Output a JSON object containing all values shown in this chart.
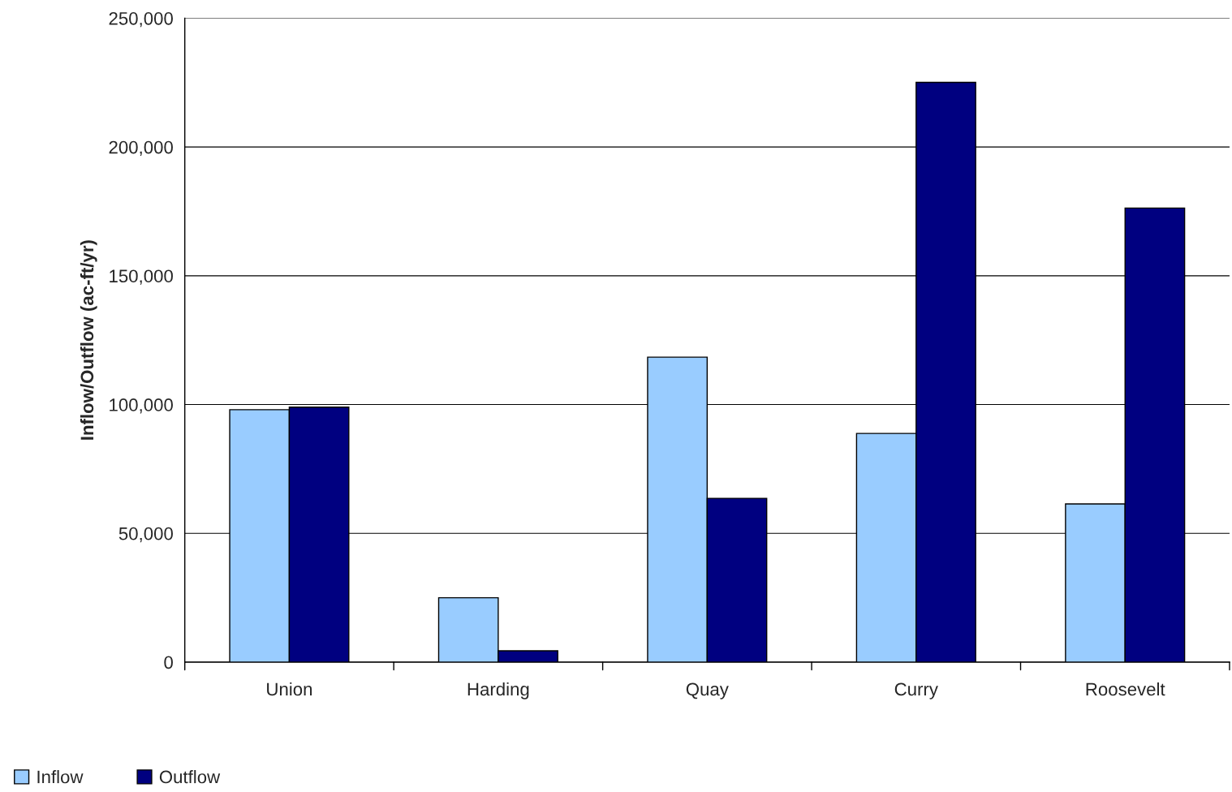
{
  "chart_data": {
    "type": "bar",
    "ylabel": "Inflow/Outflow (ac-ft/yr)",
    "categories": [
      "Union",
      "Harding",
      "Quay",
      "Curry",
      "Roosevelt"
    ],
    "series": [
      {
        "name": "Inflow",
        "color": "#99ccff",
        "values": [
          98000,
          25000,
          118400,
          88800,
          61400
        ]
      },
      {
        "name": "Outflow",
        "color": "#000080",
        "values": [
          99000,
          4400,
          63600,
          225100,
          176300
        ]
      }
    ],
    "ylim": [
      0,
      250000
    ],
    "yticks": [
      {
        "value": 0,
        "label": "0"
      },
      {
        "value": 50000,
        "label": "50,000"
      },
      {
        "value": 100000,
        "label": "100,000"
      },
      {
        "value": 150000,
        "label": "150,000"
      },
      {
        "value": 200000,
        "label": "200,000"
      },
      {
        "value": 250000,
        "label": "250,000"
      }
    ],
    "grid": "y",
    "legend": "bottom left"
  }
}
